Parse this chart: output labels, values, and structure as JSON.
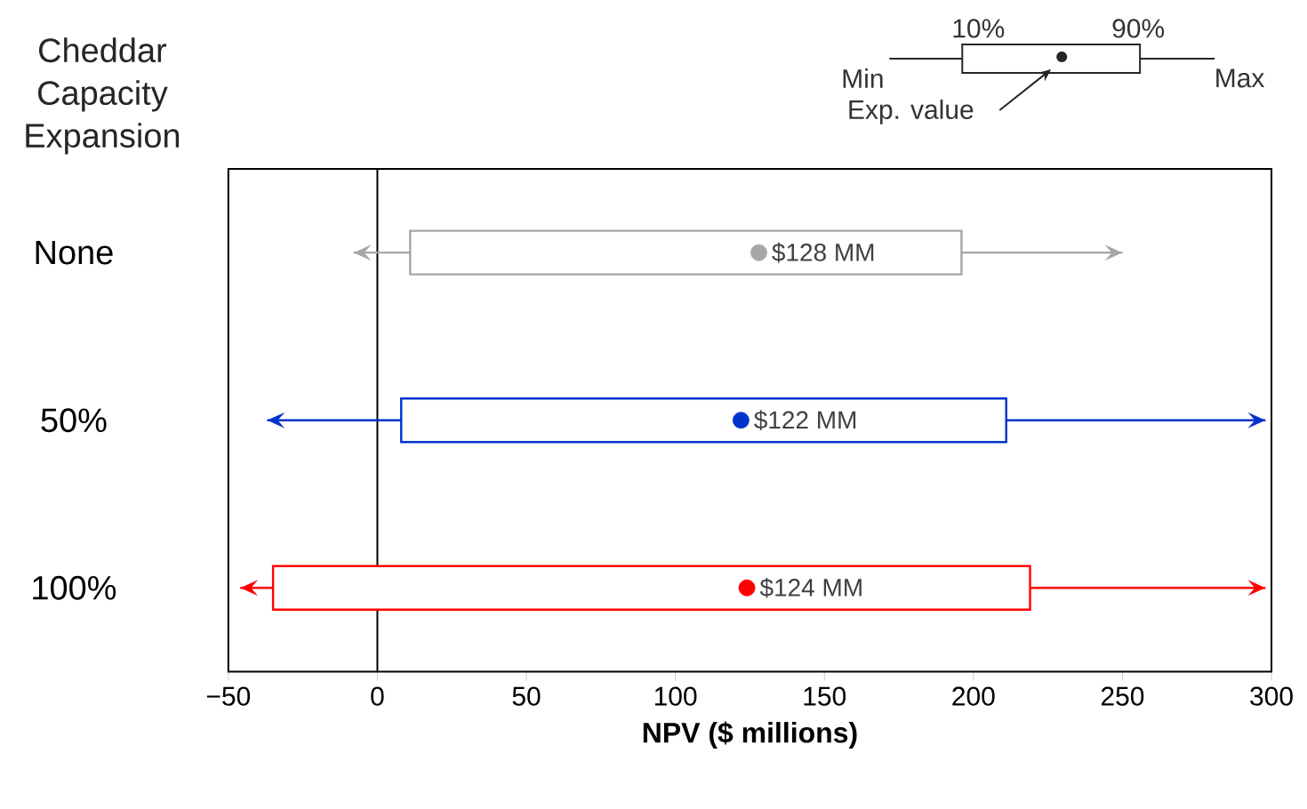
{
  "chart_data": {
    "type": "box",
    "orientation": "horizontal",
    "ylabel": "Cheddar Capacity Expansion",
    "xlabel": "NPV ($ millions)",
    "categories": [
      "None",
      "50%",
      "100%"
    ],
    "boxes": [
      {
        "low": -8,
        "q1": 11,
        "q3": 196,
        "high": 250,
        "mean": 128
      },
      {
        "low": -37,
        "q1": 8,
        "q3": 211,
        "high": 298,
        "mean": 122
      },
      {
        "low": -46,
        "q1": -35,
        "q3": 219,
        "high": 298,
        "mean": 124
      }
    ],
    "colors": [
      "#a6a6a6",
      "#0033cc",
      "#ff0000"
    ],
    "value_labels": [
      "$128 MM",
      "$122 MM",
      "$124 MM"
    ],
    "xlim": [
      -50,
      300
    ],
    "xticks": [
      {
        "value": -50,
        "label": "−50"
      },
      0,
      50,
      100,
      150,
      200,
      250,
      300
    ],
    "ref_lines": [
      {
        "axis": "x",
        "value": 0,
        "color": "#000000"
      }
    ],
    "annotations": [
      "Min",
      "10%",
      "90%",
      "Max",
      "Exp. value"
    ],
    "grid": false
  }
}
